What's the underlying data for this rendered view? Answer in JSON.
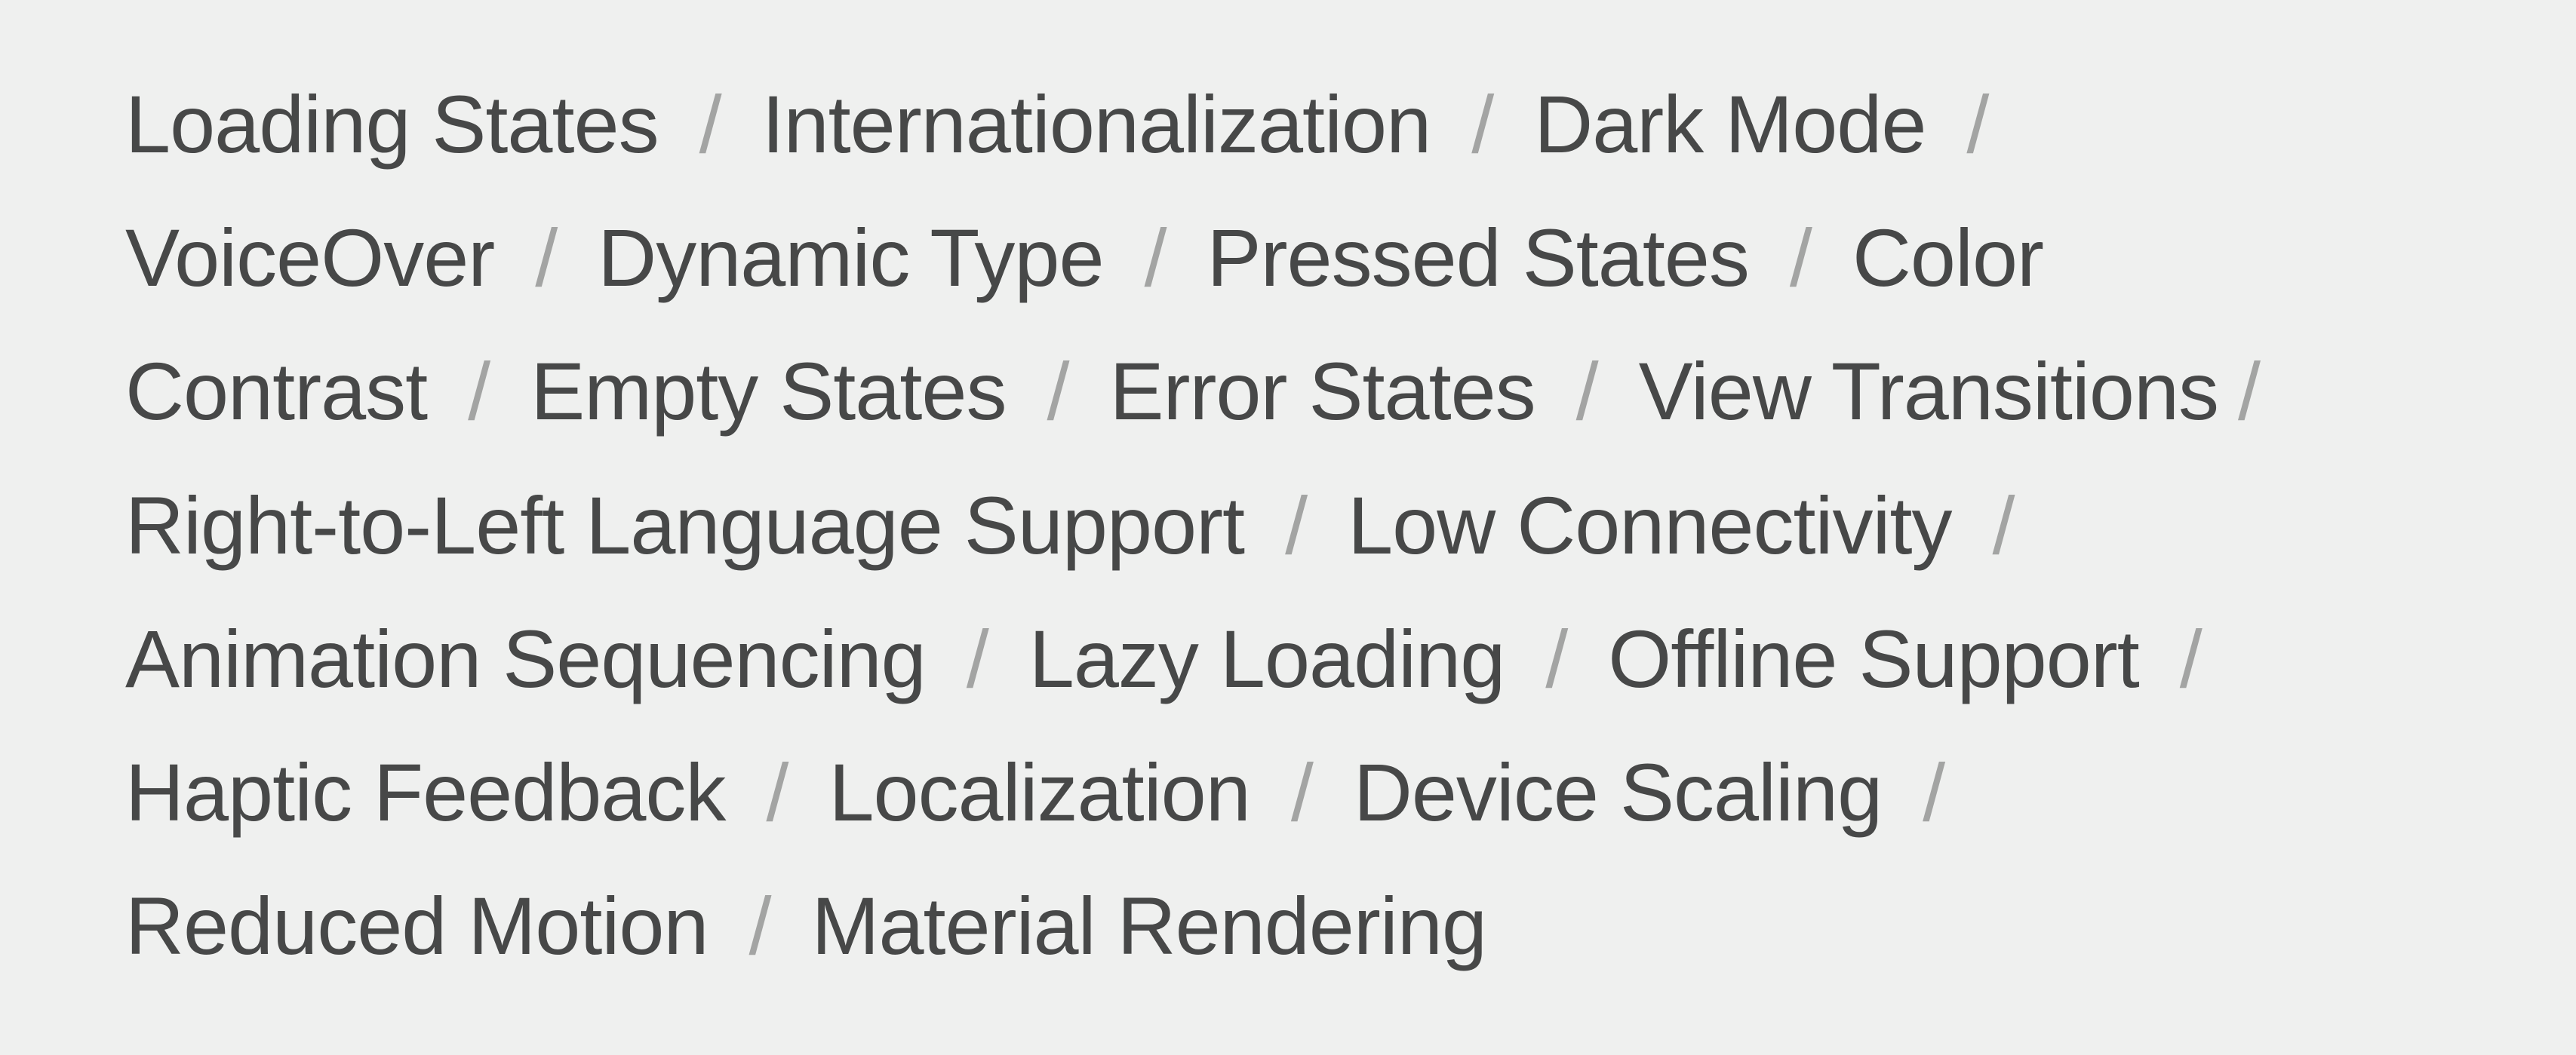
{
  "separator": "/",
  "topics": [
    "Loading States",
    "Internationalization",
    "Dark Mode",
    "VoiceOver",
    "Dynamic Type",
    "Pressed States",
    "Color",
    "Contrast",
    "Empty States",
    "Error States",
    "View Transitions",
    "Right-to-Left Language Support",
    "Low Connectivity",
    "Animation Sequencing",
    "Lazy Loading",
    "Offline Support",
    "Haptic Feedback",
    "Localization",
    "Device Scaling",
    "Reduced Motion",
    "Material Rendering"
  ]
}
